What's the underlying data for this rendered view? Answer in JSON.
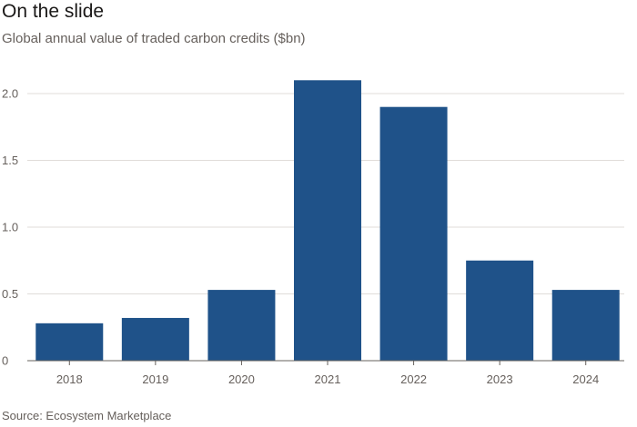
{
  "title": "On the slide",
  "subtitle": "Global annual value of traded carbon credits ($bn)",
  "source": "Source: Ecosystem Marketplace",
  "colors": {
    "bar": "#1f5289",
    "grid": "#e0dcd9",
    "axis": "#66605c",
    "text": "#66605c"
  },
  "chart_data": {
    "type": "bar",
    "title": "On the slide",
    "subtitle": "Global annual value of traded carbon credits ($bn)",
    "categories": [
      "2018",
      "2019",
      "2020",
      "2021",
      "2022",
      "2023",
      "2024"
    ],
    "values": [
      0.28,
      0.32,
      0.53,
      2.1,
      1.9,
      0.75,
      0.53
    ],
    "ylim": [
      0,
      2.0
    ],
    "yticks": [
      0,
      0.5,
      1.0,
      1.5,
      2.0
    ],
    "ytick_labels": [
      "0",
      "0.5",
      "1.0",
      "1.5",
      "2.0"
    ],
    "xlabel": "",
    "ylabel": "",
    "grid": true
  }
}
